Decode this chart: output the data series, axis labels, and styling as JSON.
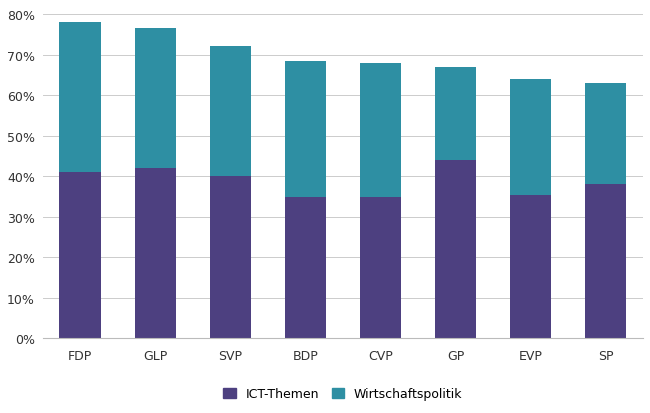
{
  "categories": [
    "FDP",
    "GLP",
    "SVP",
    "BDP",
    "CVP",
    "GP",
    "EVP",
    "SP"
  ],
  "ict_values": [
    41,
    42,
    40,
    35,
    35,
    44,
    35.5,
    38
  ],
  "wirtschaft_values": [
    37,
    34.5,
    32,
    33.5,
    33,
    23,
    28.5,
    25
  ],
  "ict_color": "#4d4080",
  "wirtschaft_color": "#2e8fa3",
  "ylabel_ticks": [
    "0%",
    "10%",
    "20%",
    "30%",
    "40%",
    "50%",
    "60%",
    "70%",
    "80%"
  ],
  "ytick_values": [
    0,
    10,
    20,
    30,
    40,
    50,
    60,
    70,
    80
  ],
  "legend_ict": "ICT-Themen",
  "legend_wirtschaft": "Wirtschaftspolitik",
  "background_color": "#ffffff",
  "grid_color": "#cccccc",
  "bar_width": 0.55,
  "ylim_max": 82
}
